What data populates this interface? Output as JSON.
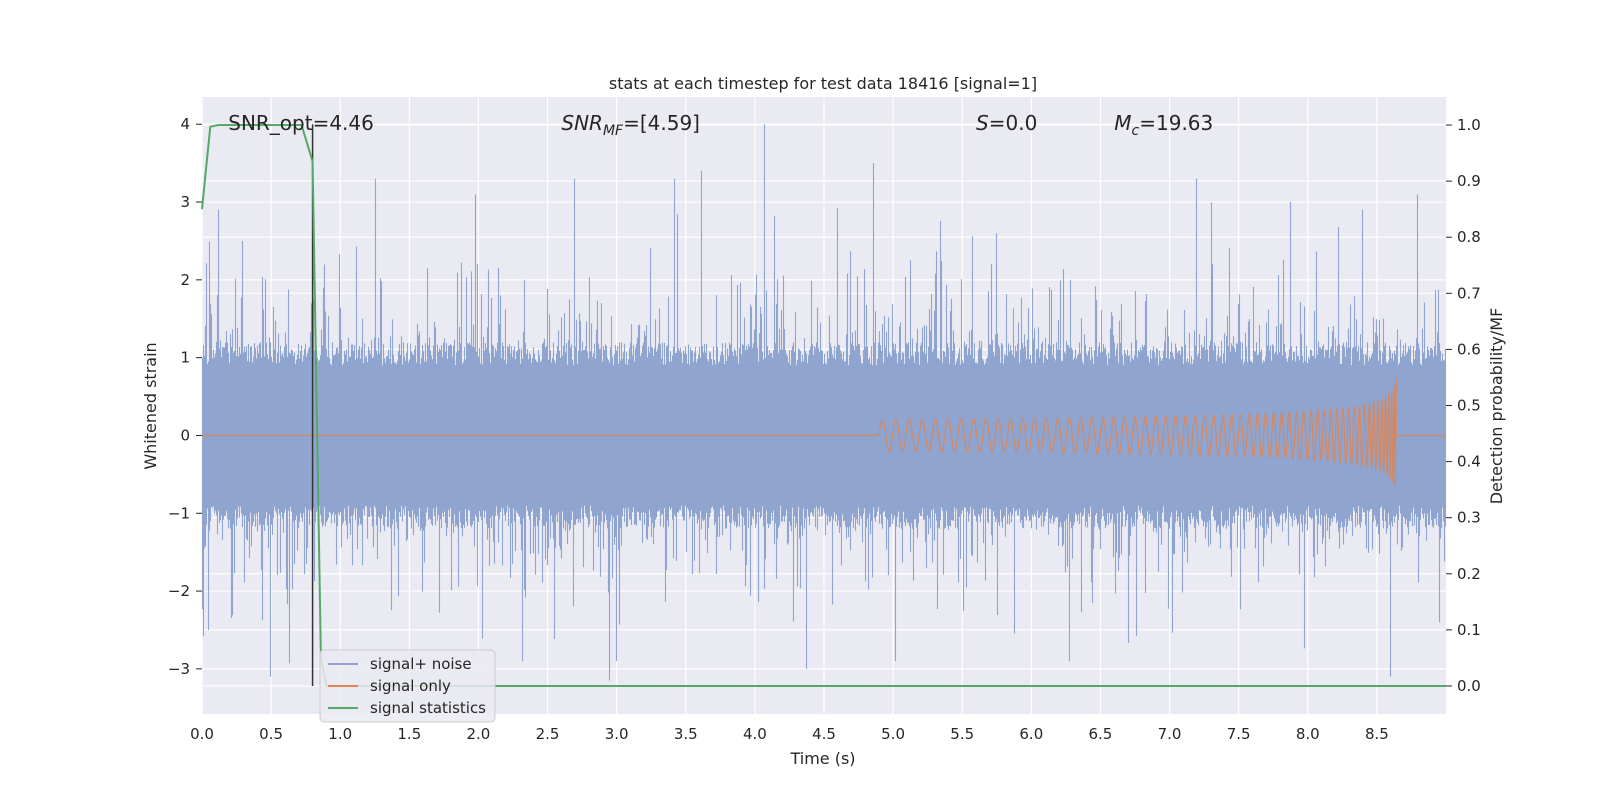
{
  "chart_data": {
    "type": "line",
    "title": "stats at each timestep for test data 18416 [signal=1]",
    "xlabel": "Time (s)",
    "ylabel": "Whitened strain",
    "y2label": "Detection probability/MF",
    "xlim": [
      0.0,
      9.0
    ],
    "ylim": [
      -3.58,
      4.35
    ],
    "y2lim": [
      -0.05,
      1.05
    ],
    "xticks": [
      0.0,
      0.5,
      1.0,
      1.5,
      2.0,
      2.5,
      3.0,
      3.5,
      4.0,
      4.5,
      5.0,
      5.5,
      6.0,
      6.5,
      7.0,
      7.5,
      8.0,
      8.5
    ],
    "xtick_labels": [
      "0.0",
      "0.5",
      "1.0",
      "1.5",
      "2.0",
      "2.5",
      "3.0",
      "3.5",
      "4.0",
      "4.5",
      "5.0",
      "5.5",
      "6.0",
      "6.5",
      "7.0",
      "7.5",
      "8.0",
      "8.5"
    ],
    "yticks": [
      -3,
      -2,
      -1,
      0,
      1,
      2,
      3,
      4
    ],
    "ytick_labels": [
      "−3",
      "−2",
      "−1",
      "0",
      "1",
      "2",
      "3",
      "4"
    ],
    "y2ticks": [
      0.0,
      0.1,
      0.2,
      0.3,
      0.4,
      0.5,
      0.6,
      0.7,
      0.8,
      0.9,
      1.0
    ],
    "y2tick_labels": [
      "0.0",
      "0.1",
      "0.2",
      "0.3",
      "0.4",
      "0.5",
      "0.6",
      "0.7",
      "0.8",
      "0.9",
      "1.0"
    ],
    "grid": true,
    "legend_position": "lower-left",
    "annotations": [
      {
        "text": "SNR_opt=4.46",
        "x": 0.19,
        "y": 4.0
      },
      {
        "text": "SNR",
        "sub": "MF",
        "suffix": "=[4.59]",
        "italic": true,
        "x": 2.6,
        "y": 4.0
      },
      {
        "text": "S",
        "suffix": "=0.0",
        "italic": true,
        "x": 5.6,
        "y": 4.0
      },
      {
        "text": "M",
        "sub": "c",
        "suffix": "=19.63",
        "italic": true,
        "x": 6.6,
        "y": 4.0
      }
    ],
    "vertical_line_x": 0.8,
    "series": [
      {
        "name": "signal+ noise",
        "color": "#8fa5d0",
        "axis": "left",
        "description_stats": {
          "typical_amplitude": 1.0,
          "max": 4.0,
          "min": -3.1
        },
        "peaks": [
          {
            "x": 0.12,
            "y": 2.9
          },
          {
            "x": 0.3,
            "y": 2.5
          },
          {
            "x": 0.88,
            "y": 1.9
          },
          {
            "x": 1.26,
            "y": 3.3
          },
          {
            "x": 1.98,
            "y": 3.1
          },
          {
            "x": 2.7,
            "y": 3.3
          },
          {
            "x": 3.42,
            "y": 3.3
          },
          {
            "x": 3.62,
            "y": 3.4
          },
          {
            "x": 4.07,
            "y": 4.0
          },
          {
            "x": 4.86,
            "y": 3.5
          },
          {
            "x": 5.75,
            "y": 2.6
          },
          {
            "x": 7.2,
            "y": 3.3
          },
          {
            "x": 7.88,
            "y": 3.0
          },
          {
            "x": 8.4,
            "y": 2.9
          },
          {
            "x": 8.8,
            "y": 3.1
          }
        ],
        "troughs": [
          {
            "x": 0.05,
            "y": -2.5
          },
          {
            "x": 0.5,
            "y": -3.1
          },
          {
            "x": 2.32,
            "y": -2.9
          },
          {
            "x": 3.0,
            "y": -2.9
          },
          {
            "x": 4.38,
            "y": -3.0
          },
          {
            "x": 5.02,
            "y": -2.9
          },
          {
            "x": 6.28,
            "y": -2.9
          },
          {
            "x": 8.6,
            "y": -3.1
          },
          {
            "x": 8.96,
            "y": -2.4
          }
        ]
      },
      {
        "name": "signal only",
        "color": "#dd8452",
        "axis": "left",
        "chirp": {
          "start_x": 4.9,
          "end_x": 8.64,
          "peak_amplitude": 0.75
        }
      },
      {
        "name": "signal statistics",
        "color": "#55a868",
        "axis": "right",
        "x": [
          0.0,
          0.02,
          0.06,
          0.12,
          0.2,
          0.4,
          0.6,
          0.72,
          0.8,
          0.86,
          0.9,
          9.0
        ],
        "y": [
          0.85,
          0.9,
          0.997,
          1.0,
          1.0,
          1.0,
          1.0,
          1.0,
          0.935,
          0.05,
          0.0,
          0.0
        ]
      }
    ]
  }
}
